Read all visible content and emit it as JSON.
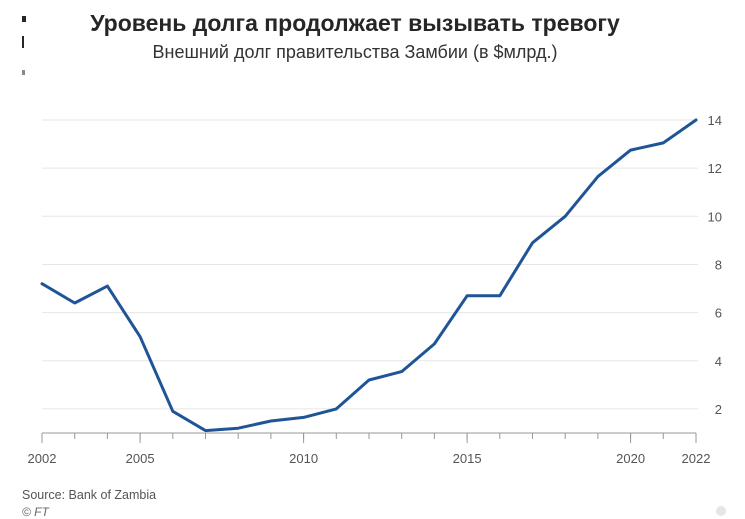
{
  "header": {
    "title": "Уровень долга продолжает вызывать тревогу",
    "subtitle": "Внешний долг правительства Замбии (в $млрд.)"
  },
  "footer": {
    "source": "Source: Bank of Zambia",
    "copyright": "© FT"
  },
  "colors": {
    "line": "#1f5597",
    "grid": "#e6e6e6",
    "axis": "#999999",
    "text": "#555555"
  },
  "chart_data": {
    "type": "line",
    "title": "Уровень долга продолжает вызывать тревогу",
    "subtitle": "Внешний долг правительства Замбии (в $млрд.)",
    "xlabel": "",
    "ylabel": "",
    "xlim": [
      2002,
      2022
    ],
    "ylim": [
      1,
      14
    ],
    "x_tick_labels": [
      "2002",
      "2005",
      "2010",
      "2015",
      "2020",
      "2022"
    ],
    "x_tick_values": [
      2002,
      2005,
      2010,
      2015,
      2020,
      2022
    ],
    "minor_x_ticks": [
      2002,
      2003,
      2004,
      2005,
      2006,
      2007,
      2008,
      2009,
      2010,
      2011,
      2012,
      2013,
      2014,
      2015,
      2016,
      2017,
      2018,
      2019,
      2020,
      2021,
      2022
    ],
    "y_tick_labels": [
      "2",
      "4",
      "6",
      "8",
      "10",
      "12",
      "14"
    ],
    "y_tick_values": [
      2,
      4,
      6,
      8,
      10,
      12,
      14
    ],
    "grid": true,
    "y_axis_side": "right",
    "series": [
      {
        "x": [
          2002,
          2003,
          2004,
          2005,
          2006,
          2007,
          2008,
          2009,
          2010,
          2011,
          2012,
          2013,
          2014,
          2015,
          2016,
          2017,
          2018,
          2019,
          2020,
          2021,
          2022
        ],
        "values": [
          7.2,
          6.4,
          7.1,
          5.0,
          1.9,
          1.1,
          1.2,
          1.5,
          1.65,
          2.0,
          3.2,
          3.55,
          4.7,
          6.7,
          6.7,
          8.9,
          10.0,
          11.65,
          12.75,
          13.05,
          14.0
        ]
      }
    ]
  }
}
